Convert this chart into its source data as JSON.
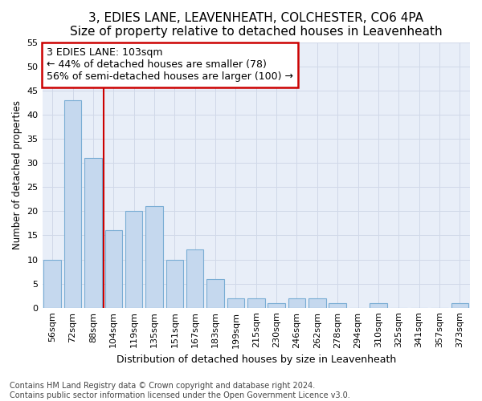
{
  "title1": "3, EDIES LANE, LEAVENHEATH, COLCHESTER, CO6 4PA",
  "title2": "Size of property relative to detached houses in Leavenheath",
  "xlabel": "Distribution of detached houses by size in Leavenheath",
  "ylabel": "Number of detached properties",
  "categories": [
    "56sqm",
    "72sqm",
    "88sqm",
    "104sqm",
    "119sqm",
    "135sqm",
    "151sqm",
    "167sqm",
    "183sqm",
    "199sqm",
    "215sqm",
    "230sqm",
    "246sqm",
    "262sqm",
    "278sqm",
    "294sqm",
    "310sqm",
    "325sqm",
    "341sqm",
    "357sqm",
    "373sqm"
  ],
  "values": [
    10,
    43,
    31,
    16,
    20,
    21,
    10,
    12,
    6,
    2,
    2,
    1,
    2,
    2,
    1,
    0,
    1,
    0,
    0,
    0,
    1
  ],
  "bar_color": "#c5d8ee",
  "bar_edge_color": "#7aadd4",
  "vline_color": "#cc0000",
  "annotation_line1": "3 EDIES LANE: 103sqm",
  "annotation_line2": "← 44% of detached houses are smaller (78)",
  "annotation_line3": "56% of semi-detached houses are larger (100) →",
  "annotation_box_color": "#ffffff",
  "annotation_box_edge_color": "#cc0000",
  "ylim": [
    0,
    55
  ],
  "yticks": [
    0,
    5,
    10,
    15,
    20,
    25,
    30,
    35,
    40,
    45,
    50,
    55
  ],
  "grid_color": "#d0d8e8",
  "bg_color": "#e8eef8",
  "footnote": "Contains HM Land Registry data © Crown copyright and database right 2024.\nContains public sector information licensed under the Open Government Licence v3.0.",
  "title1_fontsize": 11,
  "title2_fontsize": 10,
  "xlabel_fontsize": 9,
  "ylabel_fontsize": 8.5,
  "tick_fontsize": 8,
  "annotation_fontsize": 9,
  "footnote_fontsize": 7
}
